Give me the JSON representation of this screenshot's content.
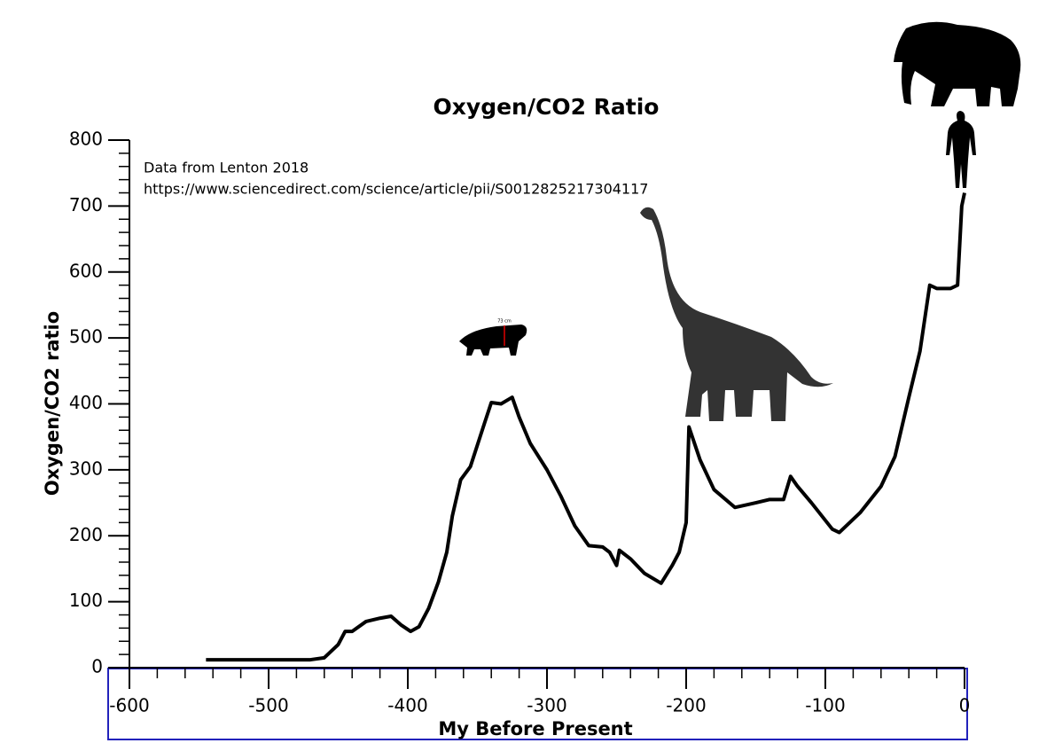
{
  "chart_data": {
    "type": "line",
    "title": "Oxygen/CO2 Ratio",
    "x_label": "My Before Present",
    "y_label": "Oxygen/CO2 ratio",
    "annotations": [
      "Data from Lenton 2018",
      "https://www.sciencedirect.com/science/article/pii/S0012825217304117",
      "73 cm"
    ],
    "x": [
      -545,
      -470,
      -460,
      -450,
      -445,
      -440,
      -430,
      -420,
      -412,
      -405,
      -398,
      -392,
      -385,
      -378,
      -372,
      -368,
      -362,
      -355,
      -345,
      -340,
      -333,
      -325,
      -320,
      -312,
      -300,
      -290,
      -280,
      -270,
      -260,
      -255,
      -250,
      -248,
      -240,
      -230,
      -218,
      -210,
      -205,
      -200,
      -198,
      -190,
      -180,
      -165,
      -150,
      -140,
      -130,
      -125,
      -120,
      -110,
      -95,
      -90,
      -75,
      -60,
      -50,
      -40,
      -32,
      -25,
      -20,
      -10,
      -5,
      -2,
      0
    ],
    "series": [
      {
        "name": "Oxygen/CO2 ratio",
        "color": "#000000",
        "values": [
          12,
          12,
          15,
          35,
          55,
          55,
          70,
          75,
          78,
          65,
          55,
          62,
          90,
          130,
          175,
          230,
          285,
          305,
          370,
          402,
          400,
          410,
          380,
          340,
          300,
          260,
          215,
          185,
          183,
          175,
          155,
          178,
          165,
          143,
          128,
          155,
          175,
          220,
          365,
          315,
          270,
          243,
          250,
          255,
          255,
          290,
          275,
          250,
          210,
          205,
          235,
          275,
          320,
          410,
          480,
          580,
          575,
          575,
          580,
          700,
          720
        ]
      }
    ],
    "xlim": [
      -600,
      0
    ],
    "xticks": [
      -600,
      -500,
      -400,
      -300,
      -200,
      -100,
      0
    ],
    "ylim": [
      0,
      800
    ],
    "yticks": [
      0,
      100,
      200,
      300,
      400,
      500,
      600,
      700,
      800
    ]
  }
}
